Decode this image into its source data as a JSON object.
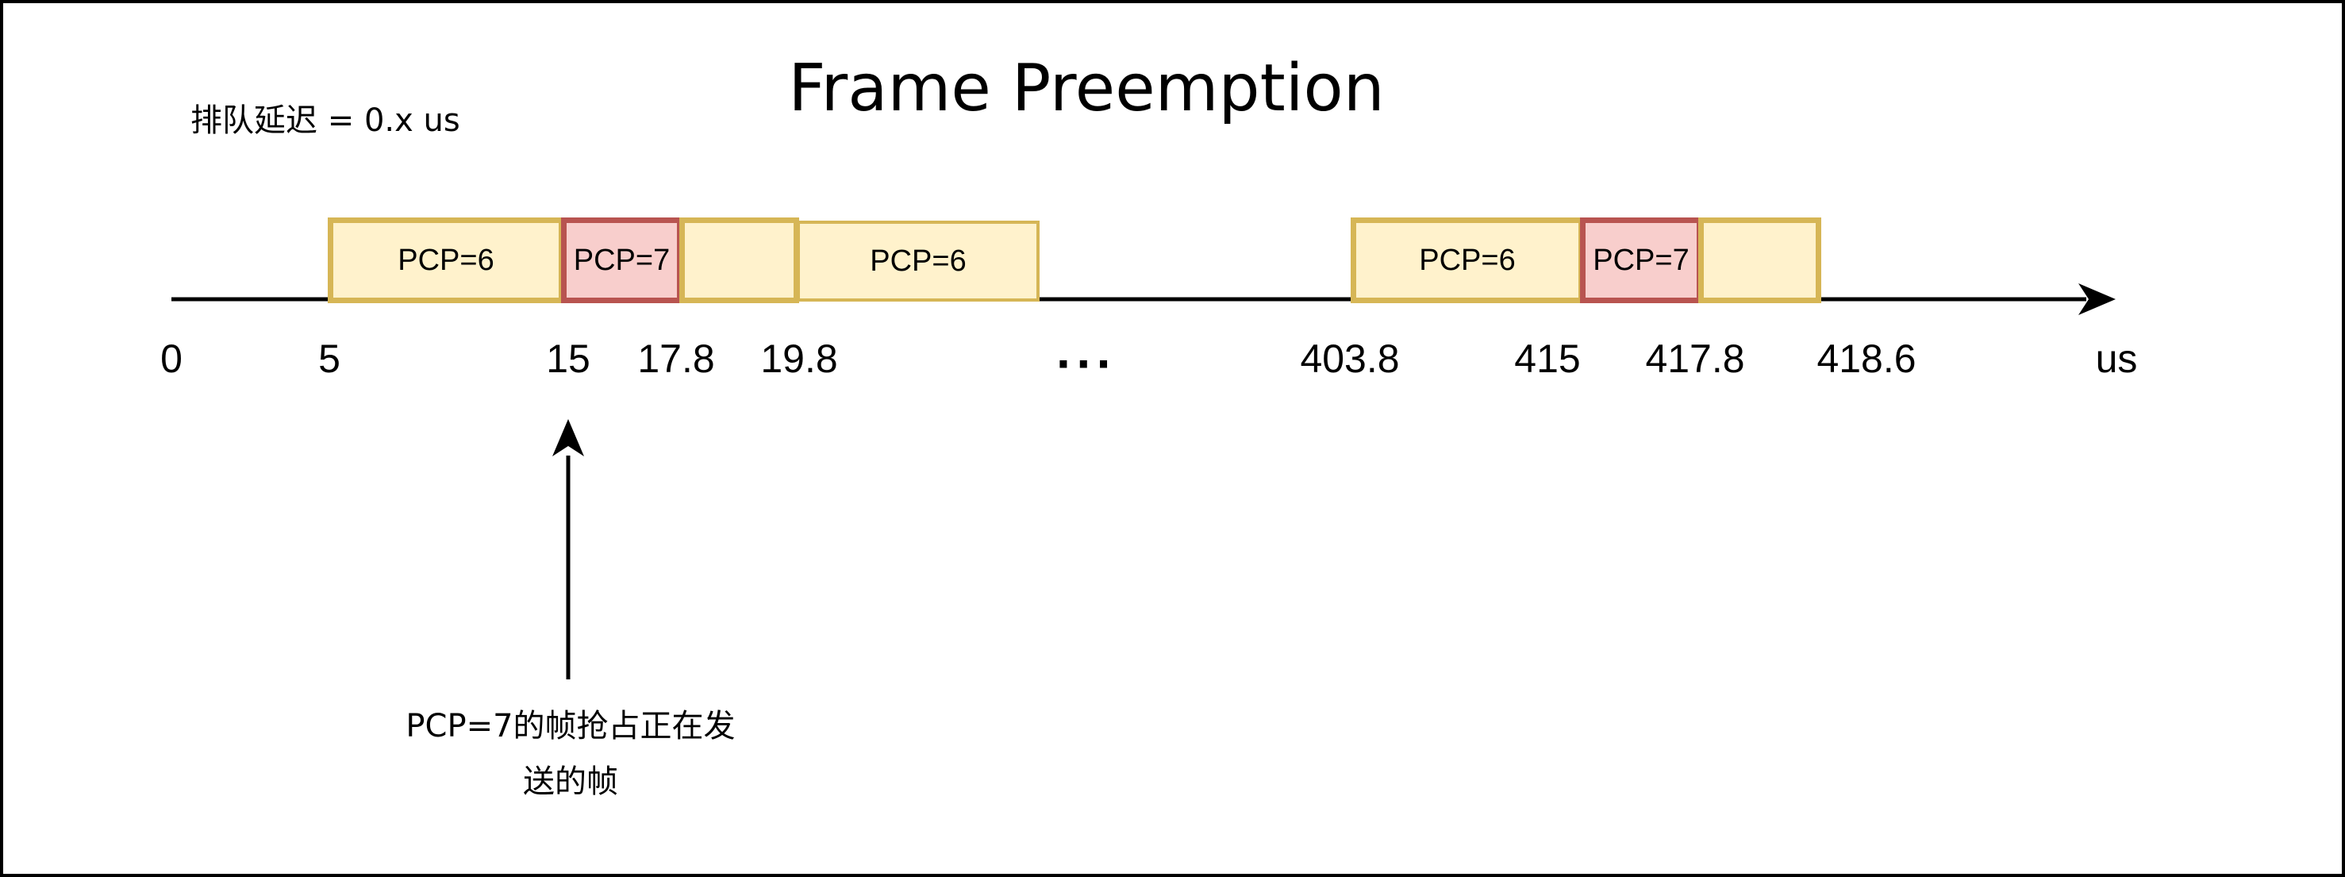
{
  "title": "Frame Preemption",
  "queue_delay_label": "排队延迟 = 0.x us",
  "colors": {
    "low_priority_fill": "#fff2cc",
    "low_priority_border": "#d6b656",
    "high_priority_fill": "#f8cecc",
    "high_priority_border": "#b85450",
    "axis": "#000000"
  },
  "frames": [
    {
      "label": "PCP=6",
      "priority": "low",
      "emphasis": "strong"
    },
    {
      "label": "PCP=7",
      "priority": "high",
      "emphasis": "strong"
    },
    {
      "label": "",
      "priority": "low",
      "emphasis": "strong"
    },
    {
      "label": "PCP=6",
      "priority": "low",
      "emphasis": "light"
    },
    {
      "label": "PCP=6",
      "priority": "low",
      "emphasis": "strong"
    },
    {
      "label": "PCP=7",
      "priority": "high",
      "emphasis": "strong"
    },
    {
      "label": "",
      "priority": "low",
      "emphasis": "strong"
    }
  ],
  "ticks": [
    "0",
    "5",
    "15",
    "17.8",
    "19.8",
    "403.8",
    "415",
    "417.8",
    "418.6"
  ],
  "ellipsis": "···",
  "axis_unit": "us",
  "annotation": {
    "line1": "PCP=7的帧抢占正在发",
    "line2": "送的帧",
    "points_to": "15"
  }
}
